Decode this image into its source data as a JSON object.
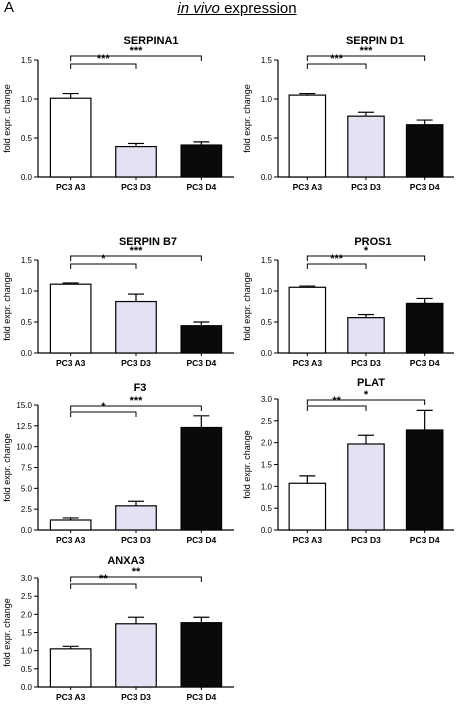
{
  "panel_letter": "A",
  "figure_title": {
    "italic": "in vivo",
    "rest": " expression"
  },
  "colors": {
    "A3": "#ffffff",
    "D3": "#e4e2f2",
    "D4": "#0a0a0a",
    "axis": "#000000"
  },
  "chart_data": [
    {
      "type": "bar",
      "title": "SERPINA1",
      "categories": [
        "PC3 A3",
        "PC3 D3",
        "PC3 D4"
      ],
      "values": [
        1.01,
        0.39,
        0.41
      ],
      "errors": [
        0.06,
        0.04,
        0.04
      ],
      "ylabel": "fold expr. change",
      "ylim": [
        0,
        1.5
      ],
      "yticks": [
        "0.0",
        "0.5",
        "1.0",
        "1.5"
      ],
      "significance": [
        {
          "from": 0,
          "to": 1,
          "label": "***"
        },
        {
          "from": 0,
          "to": 2,
          "label": "***"
        }
      ]
    },
    {
      "type": "bar",
      "title": "SERPIN D1",
      "categories": [
        "PC3 A3",
        "PC3 D3",
        "PC3 D4"
      ],
      "values": [
        1.05,
        0.78,
        0.67
      ],
      "errors": [
        0.02,
        0.05,
        0.06
      ],
      "ylabel": "fold expr. change",
      "ylim": [
        0,
        1.5
      ],
      "yticks": [
        "0.0",
        "0.5",
        "1.0",
        "1.5"
      ],
      "significance": [
        {
          "from": 0,
          "to": 1,
          "label": "***"
        },
        {
          "from": 0,
          "to": 2,
          "label": "***"
        }
      ]
    },
    {
      "type": "bar",
      "title": "SERPIN B7",
      "categories": [
        "PC3 A3",
        "PC3 D3",
        "PC3 D4"
      ],
      "values": [
        1.11,
        0.83,
        0.44
      ],
      "errors": [
        0.02,
        0.12,
        0.06
      ],
      "ylabel": "fold expr. change",
      "ylim": [
        0,
        1.5
      ],
      "yticks": [
        "0.0",
        "0.5",
        "1.0",
        "1.5"
      ],
      "significance": [
        {
          "from": 0,
          "to": 1,
          "label": "*"
        },
        {
          "from": 0,
          "to": 2,
          "label": "***"
        }
      ]
    },
    {
      "type": "bar",
      "title": "PROS1",
      "categories": [
        "PC3 A3",
        "PC3 D3",
        "PC3 D4"
      ],
      "values": [
        1.06,
        0.57,
        0.8
      ],
      "errors": [
        0.02,
        0.05,
        0.08
      ],
      "ylabel": "fold expr. change",
      "ylim": [
        0,
        1.5
      ],
      "yticks": [
        "0.0",
        "0.5",
        "1.0",
        "1.5"
      ],
      "significance": [
        {
          "from": 0,
          "to": 1,
          "label": "***"
        },
        {
          "from": 0,
          "to": 2,
          "label": "*"
        }
      ]
    },
    {
      "type": "bar",
      "title": "F3",
      "categories": [
        "PC3 A3",
        "PC3 D3",
        "PC3 D4"
      ],
      "values": [
        1.2,
        2.9,
        12.3
      ],
      "errors": [
        0.25,
        0.55,
        1.4
      ],
      "ylabel": "fold expr. change",
      "ylim": [
        0,
        15
      ],
      "yticks": [
        "0.0",
        "2.5",
        "5.0",
        "7.5",
        "10.0",
        "12.5",
        "15.0"
      ],
      "significance": [
        {
          "from": 0,
          "to": 1,
          "label": "*"
        },
        {
          "from": 0,
          "to": 2,
          "label": "***"
        }
      ]
    },
    {
      "type": "bar",
      "title": "PLAT",
      "categories": [
        "PC3 A3",
        "PC3 D3",
        "PC3 D4"
      ],
      "values": [
        1.07,
        1.97,
        2.29
      ],
      "errors": [
        0.17,
        0.2,
        0.45
      ],
      "ylabel": "fold expr. change",
      "ylim": [
        0,
        3
      ],
      "yticks": [
        "0.0",
        "0.5",
        "1.0",
        "1.5",
        "2.0",
        "2.5",
        "3.0"
      ],
      "significance": [
        {
          "from": 0,
          "to": 1,
          "label": "**"
        },
        {
          "from": 0,
          "to": 2,
          "label": "*"
        }
      ]
    },
    {
      "type": "bar",
      "title": "ANXA3",
      "categories": [
        "PC3 A3",
        "PC3 D3",
        "PC3 D4"
      ],
      "values": [
        1.05,
        1.74,
        1.77
      ],
      "errors": [
        0.07,
        0.18,
        0.15
      ],
      "ylabel": "fold expr. change",
      "ylim": [
        0,
        3
      ],
      "yticks": [
        "0.0",
        "0.5",
        "1.0",
        "1.5",
        "2.0",
        "2.5",
        "3.0"
      ],
      "significance": [
        {
          "from": 0,
          "to": 1,
          "label": "**"
        },
        {
          "from": 0,
          "to": 2,
          "label": "**"
        }
      ]
    }
  ]
}
